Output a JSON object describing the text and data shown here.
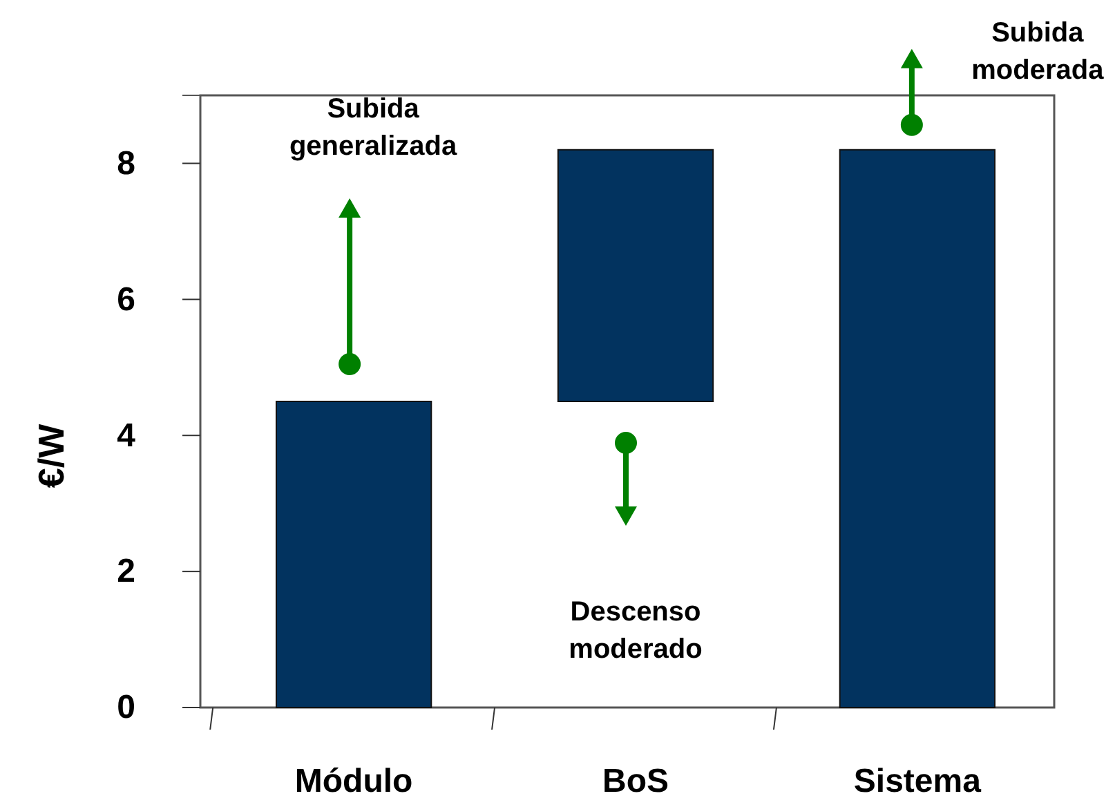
{
  "chart_data": {
    "type": "bar",
    "ylabel": "€/W",
    "categories": [
      "Módulo",
      "BoS",
      "Sistema"
    ],
    "values": [
      4.5,
      3.7,
      8.2
    ],
    "base": [
      0,
      4.5,
      0
    ],
    "color": "#02335f",
    "ylim": [
      0,
      9
    ],
    "yticks": [
      0,
      2,
      4,
      6,
      8
    ],
    "annotations": [
      "Subida generalizada",
      "Descenso moderado",
      "Subida moderada"
    ]
  }
}
